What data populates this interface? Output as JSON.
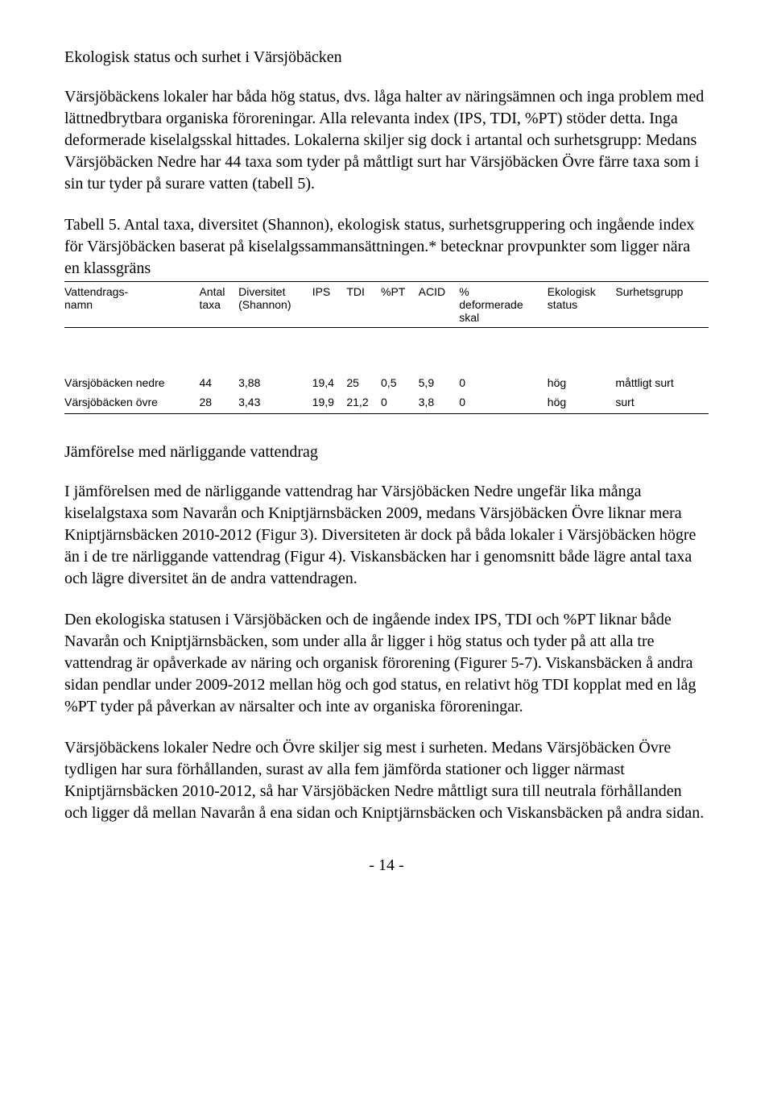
{
  "heading1": "Ekologisk status och surhet i Värsjöbäcken",
  "para1": "Värsjöbäckens lokaler har båda hög status, dvs. låga halter av näringsämnen och inga problem med lättnedbrytbara organiska föroreningar. Alla relevanta index (IPS, TDI, %PT) stöder detta. Inga deformerade kiselalgsskal hittades. Lokalerna skiljer sig dock i artantal och surhetsgrupp: Medans Värsjöbäcken Nedre har 44 taxa som tyder på måttligt surt har Värsjöbäcken Övre färre taxa som i sin tur tyder på surare vatten (tabell 5).",
  "table_caption": "Tabell 5. Antal taxa, diversitet (Shannon), ekologisk status, surhetsgruppering och ingående index för Värsjöbäcken baserat på kiselalgssammansättningen.* betecknar provpunkter som ligger nära en klassgräns",
  "table": {
    "headers": [
      "Vattendrags-\nnamn",
      "Antal\ntaxa",
      "Diversitet\n(Shannon)",
      "IPS",
      "TDI",
      "%PT",
      "ACID",
      "%\ndeformerade\nskal",
      "Ekologisk\nstatus",
      "Surhetsgrupp"
    ],
    "rows": [
      [
        "Värsjöbäcken nedre",
        "44",
        "3,88",
        "19,4",
        "25",
        "0,5",
        "5,9",
        "0",
        "hög",
        "måttligt surt"
      ],
      [
        "Värsjöbäcken övre",
        "28",
        "3,43",
        "19,9",
        "21,2",
        "0",
        "3,8",
        "0",
        "hög",
        "surt"
      ]
    ]
  },
  "heading2": "Jämförelse med närliggande vattendrag",
  "para2": "I jämförelsen med de närliggande vattendrag har Värsjöbäcken Nedre ungefär lika många kiselalgstaxa som Navarån och Kniptjärnsbäcken 2009, medans Värsjöbäcken Övre liknar mera Kniptjärnsbäcken 2010-2012 (Figur 3). Diversiteten är dock på båda lokaler i Värsjöbäcken högre än i de tre närliggande vattendrag (Figur 4). Viskansbäcken har i genomsnitt både lägre antal taxa och lägre diversitet än de andra vattendragen.",
  "para3": "Den ekologiska statusen i Värsjöbäcken och de ingående index IPS, TDI och %PT liknar både Navarån och Kniptjärnsbäcken, som under alla år ligger i hög status och tyder på att alla tre vattendrag är opåverkade av näring och organisk förorening (Figurer 5-7). Viskansbäcken å andra sidan pendlar under 2009-2012 mellan hög och god status, en relativt hög TDI kopplat med en låg %PT tyder på påverkan av närsalter och inte av organiska föroreningar.",
  "para4": "Värsjöbäckens lokaler Nedre och Övre skiljer sig mest i surheten. Medans Värsjöbäcken Övre tydligen har sura förhållanden, surast av alla fem jämförda stationer och ligger närmast Kniptjärnsbäcken 2010-2012, så har Värsjöbäcken Nedre måttligt sura till neutrala förhållanden och ligger då mellan Navarån å ena sidan och Kniptjärnsbäcken och Viskansbäcken på andra sidan.",
  "page_number": "- 14 -"
}
